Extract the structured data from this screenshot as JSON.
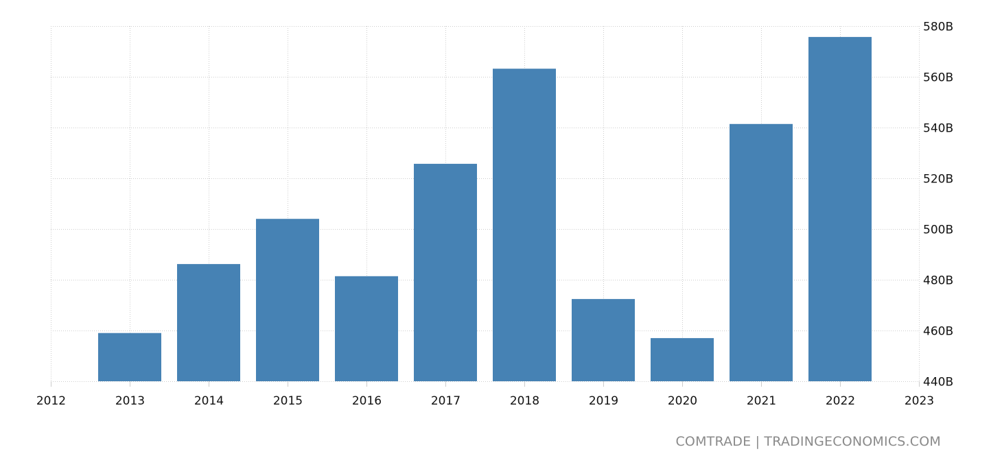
{
  "chart_data": {
    "type": "bar",
    "title": "",
    "xlabel": "",
    "ylabel": "",
    "categories": [
      "2013",
      "2014",
      "2015",
      "2016",
      "2017",
      "2018",
      "2019",
      "2020",
      "2021",
      "2022"
    ],
    "values": [
      459.0,
      486.2,
      504.0,
      481.4,
      525.7,
      563.2,
      472.4,
      457.0,
      541.4,
      575.7
    ],
    "unit": "B",
    "x_ticks": [
      "2012",
      "2013",
      "2014",
      "2015",
      "2016",
      "2017",
      "2018",
      "2019",
      "2020",
      "2021",
      "2022",
      "2023"
    ],
    "xlim": [
      2012,
      2023
    ],
    "y_ticks": [
      "440B",
      "460B",
      "480B",
      "500B",
      "520B",
      "540B",
      "560B",
      "580B"
    ],
    "y_tick_values": [
      440,
      460,
      480,
      500,
      520,
      540,
      560,
      580
    ],
    "ylim": [
      440,
      580
    ],
    "y_axis_position": "right",
    "grid": true,
    "legend": null,
    "bar_color": "#4682b4"
  },
  "footer": {
    "source_label": "COMTRADE | TRADINGECONOMICS.COM"
  },
  "colors": {
    "bar": "#4682b4",
    "grid": "#cccccc",
    "tick_label": "#111111",
    "footer_text": "#8a8a8a"
  }
}
